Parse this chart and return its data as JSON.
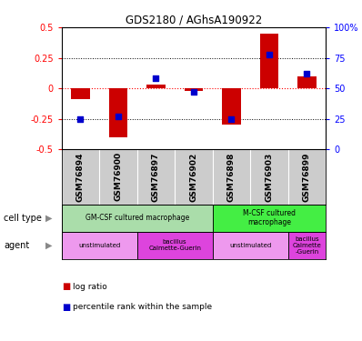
{
  "title": "GDS2180 / AGhsA190922",
  "samples": [
    "GSM76894",
    "GSM76900",
    "GSM76897",
    "GSM76902",
    "GSM76898",
    "GSM76903",
    "GSM76899"
  ],
  "log_ratios": [
    -0.09,
    -0.4,
    0.03,
    -0.02,
    -0.3,
    0.45,
    0.1
  ],
  "percentile_ranks": [
    25,
    27,
    58,
    47,
    25,
    78,
    62
  ],
  "ylim_left": [
    -0.5,
    0.5
  ],
  "ylim_right": [
    0,
    100
  ],
  "yticks_left": [
    -0.5,
    -0.25,
    0,
    0.25,
    0.5
  ],
  "yticks_right": [
    0,
    25,
    50,
    75,
    100
  ],
  "bar_color": "#cc0000",
  "scatter_color": "#0000cc",
  "cell_types": [
    {
      "label": "GM-CSF cultured macrophage",
      "span": [
        0,
        4
      ],
      "color": "#aaddaa"
    },
    {
      "label": "M-CSF cultured\nmacrophage",
      "span": [
        4,
        7
      ],
      "color": "#44ee44"
    }
  ],
  "agents": [
    {
      "label": "unstimulated",
      "span": [
        0,
        2
      ],
      "color": "#ee99ee"
    },
    {
      "label": "bacillus\nCalmette-Guerin",
      "span": [
        2,
        4
      ],
      "color": "#dd44dd"
    },
    {
      "label": "unstimulated",
      "span": [
        4,
        6
      ],
      "color": "#ee99ee"
    },
    {
      "label": "bacillus\nCalmette\n-Guerin",
      "span": [
        6,
        7
      ],
      "color": "#dd44dd"
    }
  ],
  "legend_items": [
    {
      "color": "#cc0000",
      "label": "log ratio"
    },
    {
      "color": "#0000cc",
      "label": "percentile rank within the sample"
    }
  ],
  "left_labels": [
    "cell type",
    "agent"
  ],
  "sample_bg": "#cccccc"
}
